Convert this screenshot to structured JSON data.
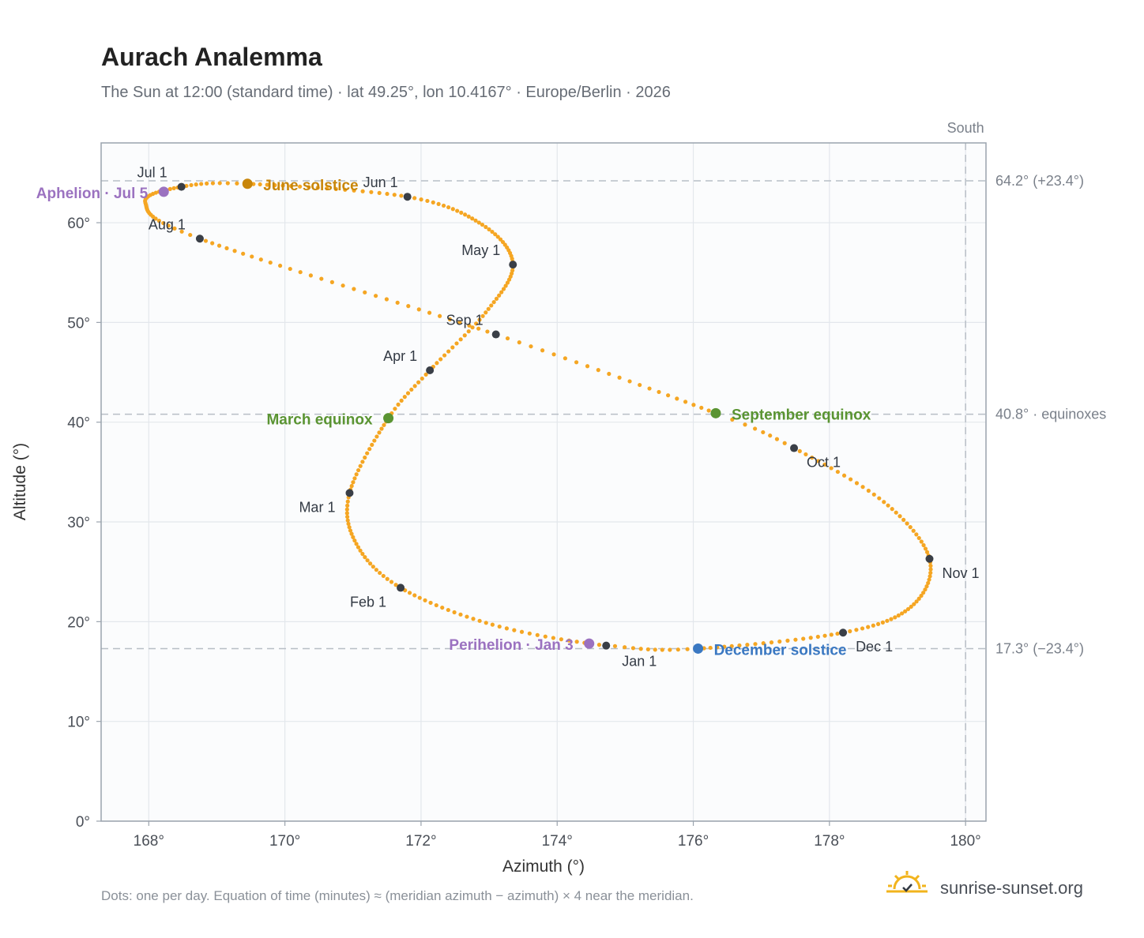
{
  "title": "Aurach Analemma",
  "subtitle": "The Sun at 12:00 (standard time) · lat 49.25°, lon 10.4167° · Europe/Berlin · 2026",
  "footnote": "Dots: one per day. Equation of time (minutes) ≈ (meridian azimuth − azimuth) × 4 near the meridian.",
  "brand": "sunrise-sunset.org",
  "colors": {
    "curve": "#f5a623",
    "month_marker": "#3a3f47",
    "june_solstice": "#c8860b",
    "december_solstice": "#3a78c2",
    "equinox": "#5a9432",
    "apsis": "#9b72c0",
    "plot_bg": "#fbfcfd",
    "grid": "#e3e7ec",
    "ref_line": "#b8bec6"
  },
  "chart_data": {
    "type": "scatter",
    "xlabel": "Azimuth (°)",
    "ylabel": "Altitude (°)",
    "xlim": [
      167.3,
      180.3
    ],
    "ylim": [
      0,
      68
    ],
    "x_ticks": [
      168,
      170,
      172,
      174,
      176,
      178,
      180
    ],
    "x_tick_labels": [
      "168°",
      "170°",
      "172°",
      "174°",
      "176°",
      "178°",
      "180°"
    ],
    "y_ticks": [
      0,
      10,
      20,
      30,
      40,
      50,
      60
    ],
    "y_tick_labels": [
      "0°",
      "10°",
      "20°",
      "30°",
      "40°",
      "50°",
      "60°"
    ],
    "grid": true,
    "meridian": {
      "azimuth": 180,
      "label": "South"
    },
    "reference_lines": [
      {
        "altitude": 64.2,
        "label": "64.2° (+23.4°)"
      },
      {
        "altitude": 40.8,
        "label": "40.8° · equinoxes"
      },
      {
        "altitude": 17.3,
        "label": "17.3° (−23.4°)"
      }
    ],
    "month_markers": [
      {
        "label": "Jan 1",
        "az": 174.72,
        "alt": 17.6
      },
      {
        "label": "Feb 1",
        "az": 171.7,
        "alt": 23.4
      },
      {
        "label": "Mar 1",
        "az": 170.95,
        "alt": 32.9
      },
      {
        "label": "Apr 1",
        "az": 172.13,
        "alt": 45.2
      },
      {
        "label": "May 1",
        "az": 173.35,
        "alt": 55.8
      },
      {
        "label": "Jun 1",
        "az": 171.8,
        "alt": 62.6
      },
      {
        "label": "Jul 1",
        "az": 168.48,
        "alt": 63.6
      },
      {
        "label": "Aug 1",
        "az": 168.75,
        "alt": 58.4
      },
      {
        "label": "Sep 1",
        "az": 173.1,
        "alt": 48.8
      },
      {
        "label": "Oct 1",
        "az": 177.48,
        "alt": 37.4
      },
      {
        "label": "Nov 1",
        "az": 179.47,
        "alt": 26.3
      },
      {
        "label": "Dec 1",
        "az": 178.2,
        "alt": 18.9
      }
    ],
    "events": [
      {
        "label": "June solstice",
        "az": 169.45,
        "alt": 63.9,
        "color_key": "june_solstice"
      },
      {
        "label": "December solstice",
        "az": 176.07,
        "alt": 17.3,
        "color_key": "december_solstice"
      },
      {
        "label": "March equinox",
        "az": 171.52,
        "alt": 40.4,
        "color_key": "equinox"
      },
      {
        "label": "September equinox",
        "az": 176.33,
        "alt": 40.9,
        "color_key": "equinox"
      },
      {
        "label": "Aphelion · Jul 5",
        "az": 168.22,
        "alt": 63.1,
        "color_key": "apsis"
      },
      {
        "label": "Perihelion · Jan 3",
        "az": 174.47,
        "alt": 17.8,
        "color_key": "apsis"
      }
    ],
    "daily_path_keypoints": [
      {
        "doy": 1,
        "az": 174.72,
        "alt": 17.6
      },
      {
        "doy": 16,
        "az": 173.05,
        "alt": 19.7
      },
      {
        "doy": 32,
        "az": 171.7,
        "alt": 23.4
      },
      {
        "doy": 46,
        "az": 171.05,
        "alt": 27.8
      },
      {
        "doy": 60,
        "az": 170.95,
        "alt": 32.9
      },
      {
        "doy": 79,
        "az": 171.52,
        "alt": 40.4
      },
      {
        "doy": 91,
        "az": 172.13,
        "alt": 45.2
      },
      {
        "doy": 106,
        "az": 172.95,
        "alt": 51.0
      },
      {
        "doy": 121,
        "az": 173.35,
        "alt": 55.8
      },
      {
        "doy": 136,
        "az": 172.9,
        "alt": 59.8
      },
      {
        "doy": 152,
        "az": 171.8,
        "alt": 62.6
      },
      {
        "doy": 172,
        "az": 169.45,
        "alt": 63.9
      },
      {
        "doy": 182,
        "az": 168.48,
        "alt": 63.6
      },
      {
        "doy": 196,
        "az": 167.95,
        "alt": 62.0
      },
      {
        "doy": 213,
        "az": 168.75,
        "alt": 58.4
      },
      {
        "doy": 244,
        "az": 173.1,
        "alt": 48.8
      },
      {
        "doy": 266,
        "az": 176.33,
        "alt": 40.9
      },
      {
        "doy": 274,
        "az": 177.48,
        "alt": 37.4
      },
      {
        "doy": 289,
        "az": 178.8,
        "alt": 32.0
      },
      {
        "doy": 305,
        "az": 179.47,
        "alt": 26.3
      },
      {
        "doy": 320,
        "az": 179.2,
        "alt": 21.5
      },
      {
        "doy": 335,
        "az": 178.2,
        "alt": 18.9
      },
      {
        "doy": 355,
        "az": 176.07,
        "alt": 17.3
      },
      {
        "doy": 365,
        "az": 174.85,
        "alt": 17.55
      }
    ]
  }
}
